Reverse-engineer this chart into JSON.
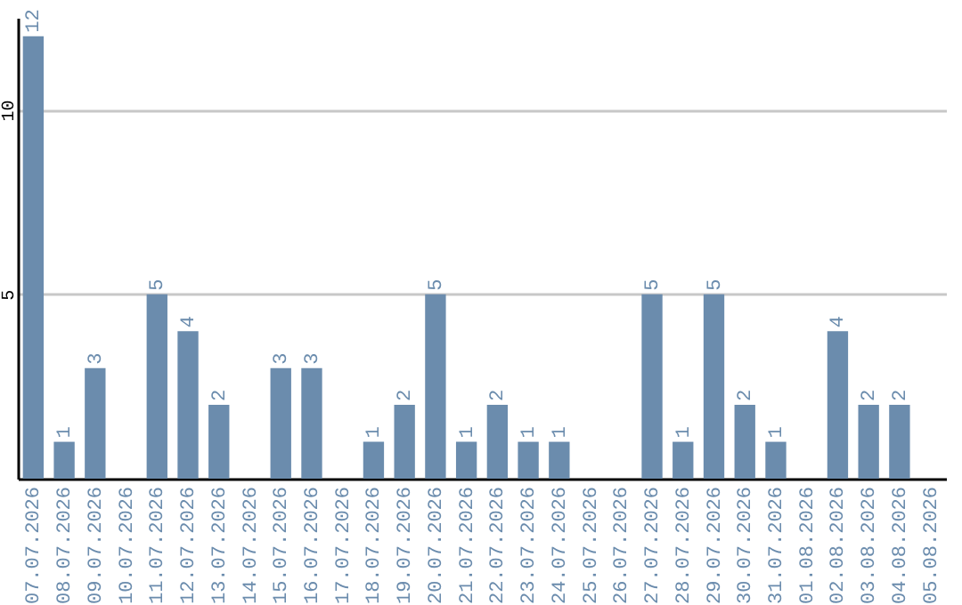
{
  "chart_data": {
    "type": "bar",
    "categories": [
      "07.07.2026",
      "08.07.2026",
      "09.07.2026",
      "10.07.2026",
      "11.07.2026",
      "12.07.2026",
      "13.07.2026",
      "14.07.2026",
      "15.07.2026",
      "16.07.2026",
      "17.07.2026",
      "18.07.2026",
      "19.07.2026",
      "20.07.2026",
      "21.07.2026",
      "22.07.2026",
      "23.07.2026",
      "24.07.2026",
      "25.07.2026",
      "26.07.2026",
      "27.07.2026",
      "28.07.2026",
      "29.07.2026",
      "30.07.2026",
      "31.07.2026",
      "01.08.2026",
      "02.08.2026",
      "03.08.2026",
      "04.08.2026",
      "05.08.2026"
    ],
    "values": [
      12,
      1,
      3,
      null,
      5,
      4,
      2,
      null,
      3,
      3,
      null,
      1,
      2,
      5,
      1,
      2,
      1,
      1,
      null,
      null,
      5,
      1,
      5,
      2,
      1,
      null,
      4,
      2,
      2,
      null
    ],
    "color": "#6b8cad",
    "ylim": [
      0,
      12.5
    ],
    "yticks": [
      5,
      10
    ],
    "grid": "y",
    "data_labels": true
  }
}
